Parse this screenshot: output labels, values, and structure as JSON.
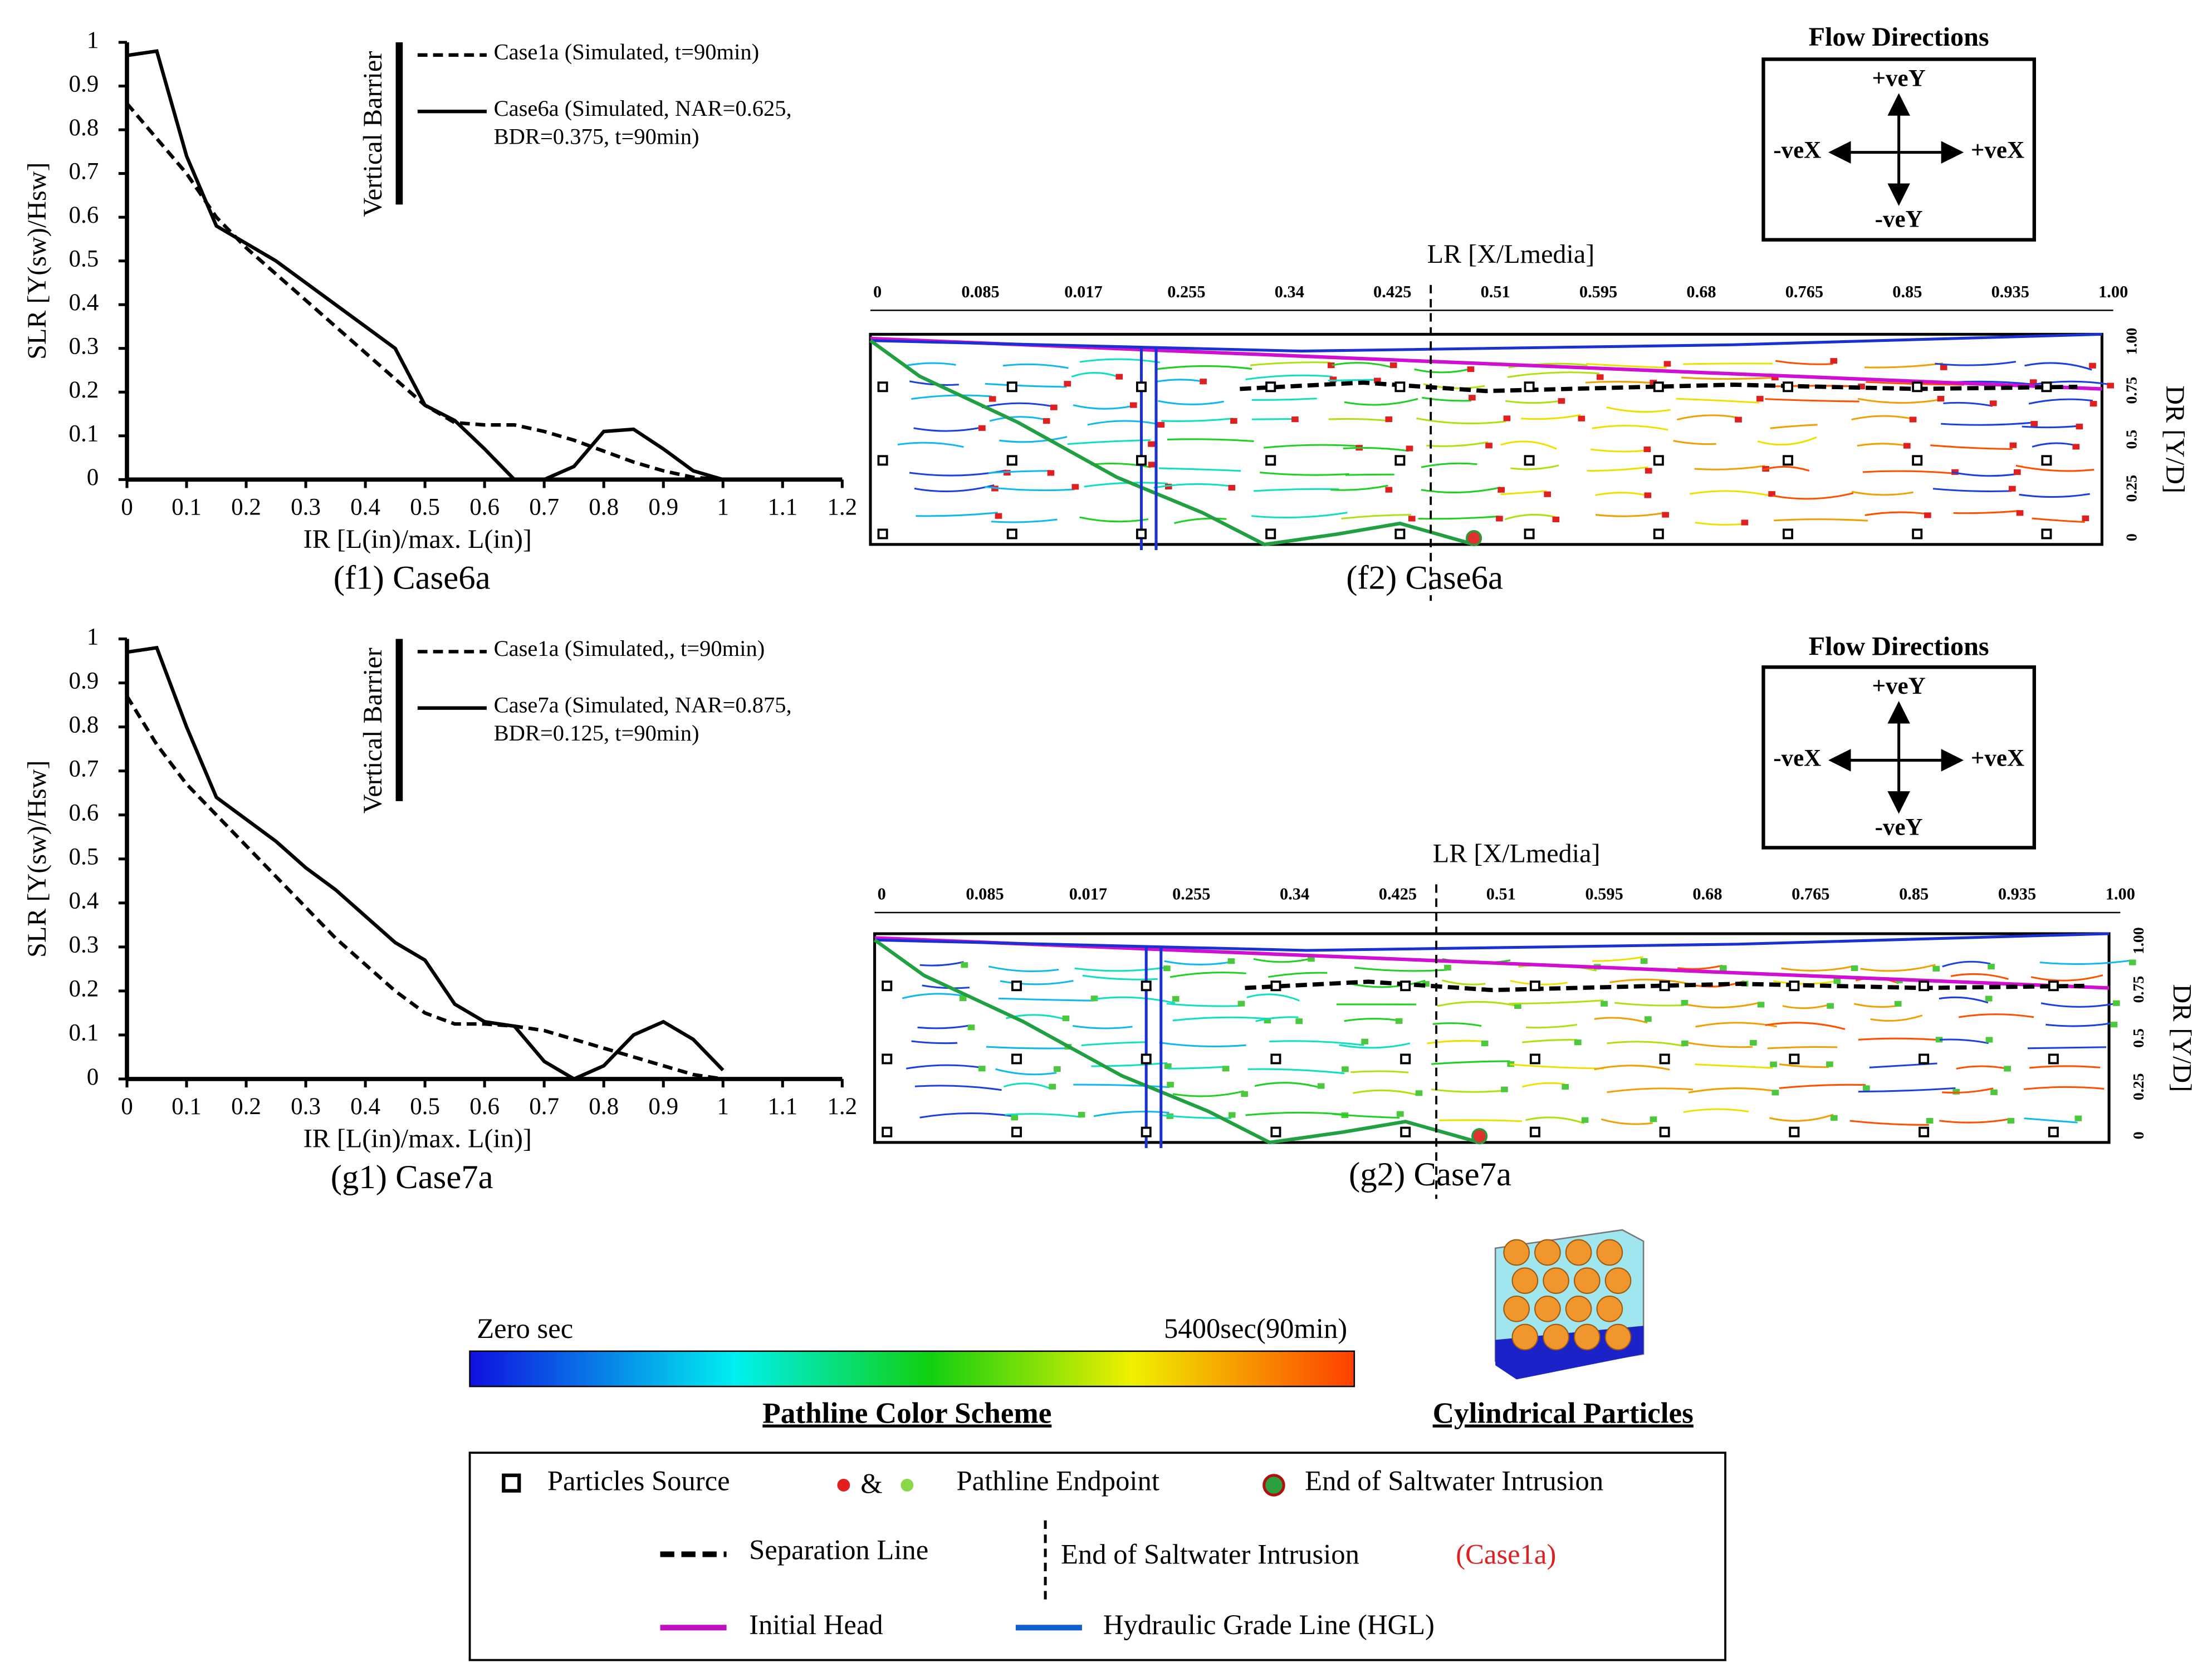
{
  "chart_data": [
    {
      "type": "line",
      "xlabel": "IR [L(in)/max. L(in)]",
      "ylabel": "SLR [Y(sw)/Hsw]",
      "caption": "(f1) Case6a",
      "annotation": "Vertical Barrier",
      "x": [
        0,
        0.05,
        0.1,
        0.15,
        0.2,
        0.25,
        0.3,
        0.35,
        0.4,
        0.45,
        0.5,
        0.55,
        0.6,
        0.65,
        0.7,
        0.75,
        0.8,
        0.85,
        0.9,
        0.95,
        1.0
      ],
      "xlim": [
        0,
        1.2
      ],
      "xticks": [
        0,
        0.1,
        0.2,
        0.3,
        0.4,
        0.5,
        0.6,
        0.7,
        0.8,
        0.9,
        1,
        1.1,
        1.2
      ],
      "ylim": [
        0,
        1
      ],
      "yticks": [
        0,
        0.1,
        0.2,
        0.3,
        0.4,
        0.5,
        0.6,
        0.7,
        0.8,
        0.9,
        1
      ],
      "series": [
        {
          "name": "Case1a (Simulated, t=90min)",
          "color": "#000000",
          "dash": "dashed",
          "values": [
            0.86,
            0.78,
            0.7,
            0.6,
            0.53,
            0.47,
            0.41,
            0.35,
            0.29,
            0.23,
            0.17,
            0.13,
            0.125,
            0.125,
            0.11,
            0.09,
            0.065,
            0.04,
            0.02,
            0.005,
            0
          ]
        },
        {
          "name": "Case6a (Simulated, NAR=0.625, BDR=0.375, t=90min)",
          "color": "#000000",
          "dash": "solid",
          "values": [
            0.97,
            0.98,
            0.74,
            0.58,
            0.54,
            0.5,
            0.45,
            0.4,
            0.35,
            0.3,
            0.17,
            0.135,
            0.07,
            0,
            0,
            0.03,
            0.11,
            0.115,
            0.07,
            0.02,
            0
          ]
        }
      ]
    },
    {
      "type": "line",
      "xlabel": "IR [L(in)/max. L(in)]",
      "ylabel": "SLR [Y(sw)/Hsw]",
      "caption": "(g1) Case7a",
      "annotation": "Vertical Barrier",
      "x": [
        0,
        0.05,
        0.1,
        0.15,
        0.2,
        0.25,
        0.3,
        0.35,
        0.4,
        0.45,
        0.5,
        0.55,
        0.6,
        0.65,
        0.7,
        0.75,
        0.8,
        0.85,
        0.9,
        0.95,
        1.0
      ],
      "xlim": [
        0,
        1.2
      ],
      "xticks": [
        0,
        0.1,
        0.2,
        0.3,
        0.4,
        0.5,
        0.6,
        0.7,
        0.8,
        0.9,
        1,
        1.1,
        1.2
      ],
      "ylim": [
        0,
        1
      ],
      "yticks": [
        0,
        0.1,
        0.2,
        0.3,
        0.4,
        0.5,
        0.6,
        0.7,
        0.8,
        0.9,
        1
      ],
      "series": [
        {
          "name": "Case1a (Simulated,, t=90min)",
          "color": "#000000",
          "dash": "dashed",
          "values": [
            0.87,
            0.76,
            0.67,
            0.6,
            0.53,
            0.46,
            0.39,
            0.32,
            0.26,
            0.2,
            0.15,
            0.125,
            0.125,
            0.12,
            0.11,
            0.09,
            0.07,
            0.05,
            0.03,
            0.01,
            0
          ]
        },
        {
          "name": "Case7a (Simulated, NAR=0.875, BDR=0.125, t=90min)",
          "color": "#000000",
          "dash": "solid",
          "values": [
            0.97,
            0.98,
            0.8,
            0.64,
            0.59,
            0.54,
            0.48,
            0.43,
            0.37,
            0.31,
            0.27,
            0.17,
            0.13,
            0.12,
            0.04,
            0,
            0.03,
            0.1,
            0.13,
            0.09,
            0.02
          ]
        }
      ]
    }
  ],
  "panels": [
    {
      "caption": "(f2) Case6a",
      "top_axis_title": "LR [X/Lmedia]",
      "right_axis_title": "DR [Y/D]",
      "endpoint_color": "#e02020",
      "top_ticks": [
        "0",
        "0.085",
        "0.017",
        "0.255",
        "0.34",
        "0.425",
        "0.51",
        "0.595",
        "0.68",
        "0.765",
        "0.85",
        "0.935",
        "1.00"
      ],
      "right_ticks": [
        "1.00",
        "0.75",
        "0.5",
        "0.25",
        "0"
      ],
      "flow_directions": {
        "title": "Flow Directions",
        "up": "+veY",
        "left": "-veX",
        "right": "+veX",
        "down": "-veY"
      }
    },
    {
      "caption": "(g2) Case7a",
      "top_axis_title": "LR [X/Lmedia]",
      "right_axis_title": "DR [Y/D]",
      "endpoint_color": "#4cc83c",
      "top_ticks": [
        "0",
        "0.085",
        "0.017",
        "0.255",
        "0.34",
        "0.425",
        "0.51",
        "0.595",
        "0.68",
        "0.765",
        "0.85",
        "0.935",
        "1.00"
      ],
      "right_ticks": [
        "1.00",
        "0.75",
        "0.5",
        "0.25",
        "0"
      ],
      "flow_directions": {
        "title": "Flow Directions",
        "up": "+veY",
        "left": "-veX",
        "right": "+veX",
        "down": "-veY"
      }
    }
  ],
  "color_scheme": {
    "start": "Zero sec",
    "end": "5400sec(90min)",
    "title": "Pathline Color Scheme"
  },
  "particles": {
    "title": "Cylindrical Particles"
  },
  "legend": {
    "source": "Particles Source",
    "amp": "&",
    "endpoint": "Pathline Endpoint",
    "end_intrusion": "End of Saltwater Intrusion",
    "separation": "Separation Line",
    "end_intrusion_ref": "End of Saltwater Intrusion",
    "ref_case": "(Case1a)",
    "initial_head": "Initial Head",
    "hgl": "Hydraulic Grade Line (HGL)"
  }
}
